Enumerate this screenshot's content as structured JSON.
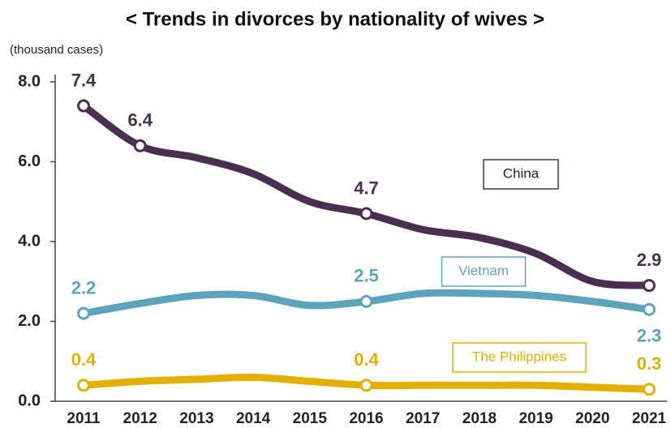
{
  "chart_data": {
    "type": "line",
    "title": "< Trends in divorces by nationality of wives >",
    "y_label": "(thousand cases)",
    "categories": [
      "2011",
      "2012",
      "2013",
      "2014",
      "2015",
      "2016",
      "2017",
      "2018",
      "2019",
      "2020",
      "2021"
    ],
    "ylim": [
      0,
      8
    ],
    "yticks": [
      {
        "value": 0,
        "label": "0.0"
      },
      {
        "value": 2,
        "label": "2.0"
      },
      {
        "value": 4,
        "label": "4.0"
      },
      {
        "value": 6,
        "label": "6.0"
      },
      {
        "value": 8,
        "label": "8.0"
      }
    ],
    "grid": false,
    "series": [
      {
        "name": "China",
        "color": "#4a3050",
        "values": [
          7.4,
          6.4,
          6.1,
          5.7,
          5.0,
          4.7,
          4.3,
          4.1,
          3.7,
          3.0,
          2.9
        ],
        "value_labels": [
          "7.4",
          "6.4",
          null,
          null,
          null,
          "4.7",
          null,
          null,
          null,
          null,
          "2.9"
        ]
      },
      {
        "name": "Vietnam",
        "color": "#5ea3bd",
        "values": [
          2.2,
          2.45,
          2.65,
          2.65,
          2.4,
          2.5,
          2.7,
          2.7,
          2.65,
          2.5,
          2.3
        ],
        "value_labels": [
          "2.2",
          null,
          null,
          null,
          null,
          "2.5",
          null,
          null,
          null,
          null,
          "2.3"
        ]
      },
      {
        "name": "The Philippines",
        "color": "#e3b000",
        "values": [
          0.4,
          0.5,
          0.55,
          0.6,
          0.5,
          0.4,
          0.4,
          0.4,
          0.4,
          0.35,
          0.3
        ],
        "value_labels": [
          "0.4",
          null,
          null,
          null,
          null,
          "0.4",
          null,
          null,
          null,
          null,
          "0.3"
        ]
      }
    ]
  }
}
